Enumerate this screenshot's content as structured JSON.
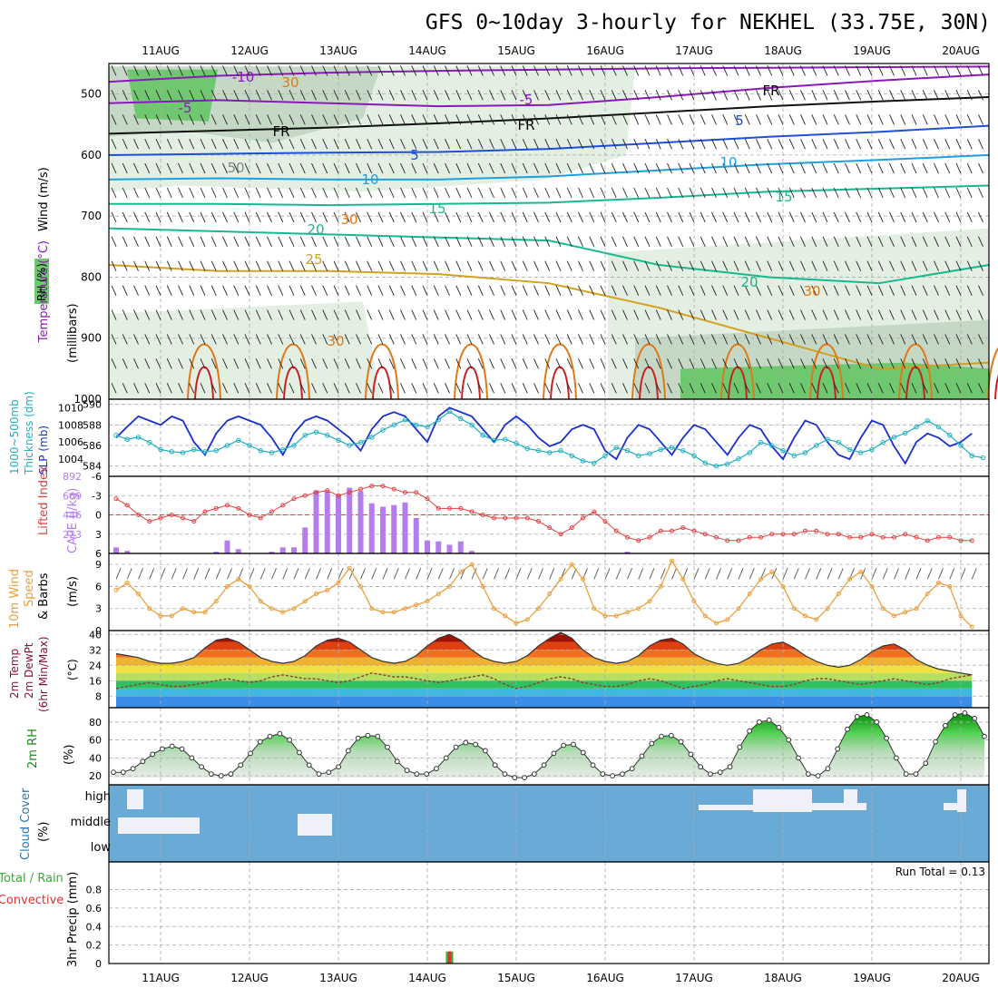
{
  "title": "GFS 0~10day 3-hourly for NEKHEL (33.75E, 30N)",
  "dates": [
    "11AUG",
    "12AUG",
    "13AUG",
    "14AUG",
    "15AUG",
    "16AUG",
    "17AUG",
    "18AUG",
    "19AUG",
    "20AUG"
  ],
  "colors": {
    "frame": "#000000",
    "grid": "#aaaaaa",
    "rh_light": "#e2efe2",
    "rh_mid": "#c5d8c5",
    "rh_dark": "#a8bca8",
    "rh_green": "#6fc86f",
    "temp_purple": "#8a1ab8",
    "temp_black": "#111111",
    "temp_blue": "#1e4fd8",
    "temp_cyan": "#1ea0e0",
    "temp_teal": "#18b890",
    "temp_gold": "#d4a020",
    "temp_orange": "#e07818",
    "temp_red": "#c82020",
    "slp": "#1a2fd0",
    "thickness": "#20b0c0",
    "lifted": "#e04040",
    "cape": "#b57cf0",
    "wind": "#e8a040",
    "cloud_bg": "#6aaad6",
    "cloud_fill": "#f0f0f8",
    "precip_total": "#30b030",
    "precip_conv": "#e03030"
  },
  "panels": {
    "upper": {
      "ylabel_lines": [
        "Wind (m/s)",
        "Temperature (°C)",
        "(millibars)",
        "RH (%)"
      ],
      "yticks": [
        "500",
        "600",
        "700",
        "800",
        "900",
        "1000"
      ],
      "contour_labels": [
        "-10",
        "-5",
        "-5",
        "FR",
        "FR",
        "FR",
        "5",
        "5",
        "10",
        "10",
        "15",
        "15",
        "20",
        "20",
        "25",
        "30",
        "30",
        "50",
        "30",
        "30"
      ]
    },
    "slp_thick": {
      "ylabel_lines": [
        "1000~500mb",
        "Thickness (dm)",
        "SLP (mb)"
      ],
      "left_ticks": [
        "590",
        "588",
        "586",
        "584"
      ],
      "right_ticks": [
        "1010",
        "1008",
        "1006",
        "1004"
      ]
    },
    "li_cape": {
      "ylabel_lines": [
        "Lifted Index",
        "CAPE (J/kg)"
      ],
      "left_ticks": [
        "-6",
        "-3",
        "0",
        "3",
        "6"
      ],
      "right_ticks": [
        "892",
        "669",
        "446",
        "223"
      ]
    },
    "wind10": {
      "ylabel_lines": [
        "10m Wind",
        "Speed",
        "& Barbs",
        "(m/s)"
      ],
      "yticks": [
        "9",
        "6",
        "3",
        "0"
      ]
    },
    "temp2m": {
      "ylabel_lines": [
        "2m Temp",
        "2m DewPt",
        "(6hr Min/Max)",
        "(°C)"
      ],
      "yticks": [
        "40",
        "32",
        "24",
        "16",
        "8"
      ]
    },
    "rh2m": {
      "ylabel_lines": [
        "2m RH",
        "(%)"
      ],
      "yticks": [
        "80",
        "60",
        "40",
        "20"
      ]
    },
    "cloud": {
      "ylabel_lines": [
        "Cloud Cover",
        "(%)"
      ],
      "levels": [
        "high",
        "middle",
        "low"
      ]
    },
    "precip": {
      "ylabel_lines": [
        "Total / Rain",
        "Convective",
        "3hr Precip (mm)"
      ],
      "yticks": [
        "0.8",
        "0.6",
        "0.4",
        "0.2",
        "0"
      ],
      "yticks_all": [
        "1",
        "0.8",
        "0.6",
        "0.4",
        "0.2",
        "0"
      ],
      "run_total": "Run Total = 0.13"
    }
  },
  "chart_data": [
    {
      "type": "line",
      "name": "slp_thickness",
      "x_unit": "3-hourly steps",
      "series": [
        {
          "name": "SLP (mb)",
          "values": [
            1006.5,
            1007.8,
            1009.0,
            1008.5,
            1008.0,
            1009.0,
            1008.5,
            1006.0,
            1004.5,
            1007.0,
            1008.5,
            1009.0,
            1008.5,
            1008.0,
            1006.5,
            1004.5,
            1007.0,
            1008.5,
            1009.0,
            1008.5,
            1007.5,
            1006.5,
            1005.0,
            1007.5,
            1009.0,
            1009.5,
            1009.0,
            1007.5,
            1006.0,
            1009.0,
            1010.0,
            1009.5,
            1009.0,
            1007.5,
            1006.0,
            1008.0,
            1009.0,
            1008.0,
            1006.5,
            1005.5,
            1006.0,
            1007.5,
            1008.0,
            1007.5,
            1005.0,
            1004.0,
            1006.5,
            1008.0,
            1007.5,
            1006.0,
            1004.5,
            1006.5,
            1008.0,
            1007.5,
            1006.0,
            1004.5,
            1006.5,
            1008.0,
            1007.5,
            1005.5,
            1004.0,
            1006.5,
            1008.5,
            1008.0,
            1006.0,
            1004.5,
            1004.0,
            1006.5,
            1008.5,
            1008.0,
            1005.5,
            1003.5,
            1006.0,
            1007.0,
            1006.5,
            1005.5,
            1006.0,
            1007.0
          ]
        },
        {
          "name": "1000~500mb Thickness (dm)",
          "values": [
            587.0,
            586.6,
            586.8,
            586.3,
            585.6,
            585.4,
            585.3,
            585.6,
            585.4,
            585.5,
            586.0,
            586.5,
            586.0,
            585.5,
            585.3,
            585.6,
            586.0,
            587.0,
            587.3,
            587.0,
            586.5,
            586.0,
            586.3,
            586.8,
            587.5,
            588.0,
            588.5,
            588.0,
            587.8,
            588.5,
            589.3,
            588.6,
            588.0,
            587.0,
            586.5,
            586.6,
            586.2,
            585.7,
            585.5,
            585.3,
            585.5,
            585.0,
            584.5,
            584.3,
            585.0,
            585.8,
            585.5,
            585.0,
            585.2,
            585.6,
            585.8,
            585.5,
            585.0,
            584.3,
            584.0,
            584.2,
            584.7,
            585.3,
            586.3,
            586.0,
            585.5,
            585.0,
            585.3,
            586.0,
            586.6,
            586.3,
            585.6,
            585.3,
            585.6,
            586.3,
            586.8,
            587.2,
            587.8,
            588.4,
            587.8,
            587.0,
            586.0,
            585.0,
            584.8,
            585.3
          ]
        }
      ]
    },
    {
      "type": "bar",
      "name": "cape_lifted_index",
      "series": [
        {
          "name": "CAPE (J/kg)",
          "values": [
            70,
            30,
            0,
            0,
            0,
            0,
            0,
            0,
            0,
            20,
            150,
            50,
            0,
            0,
            20,
            70,
            70,
            300,
            730,
            720,
            680,
            760,
            720,
            580,
            540,
            560,
            590,
            410,
            150,
            140,
            100,
            140,
            30,
            0,
            0,
            0,
            0,
            0,
            0,
            0,
            0,
            0,
            0,
            0,
            0,
            0,
            20,
            0,
            0,
            0,
            0,
            0,
            0,
            0,
            0,
            0,
            0,
            0,
            0,
            0,
            0,
            0,
            0,
            0,
            0,
            0,
            0,
            0,
            0,
            0,
            0,
            0,
            0,
            0,
            0,
            0,
            0,
            0
          ]
        },
        {
          "name": "Lifted Index",
          "values": [
            -2.5,
            -1.5,
            0,
            1,
            0.5,
            0,
            0.5,
            1,
            -0.5,
            -1,
            -1.5,
            -1,
            0,
            0.5,
            -0.5,
            -1.5,
            -2.5,
            -3,
            -3.5,
            -3.8,
            -3,
            -3.5,
            -4,
            -4.5,
            -4.5,
            -4,
            -3.5,
            -3.5,
            -2.5,
            -1,
            -1,
            -1,
            -0.5,
            0,
            0.5,
            0.5,
            0.5,
            0.5,
            1,
            2,
            3,
            2,
            0.5,
            -0.5,
            1,
            2.5,
            3.5,
            4,
            3.5,
            2.5,
            2.5,
            2,
            2.5,
            3,
            3.5,
            4,
            4,
            3.5,
            3.5,
            3,
            3,
            3,
            2.5,
            2.5,
            3,
            3,
            3.5,
            3.5,
            3,
            3.5,
            3.5,
            3,
            3.5,
            4,
            3.5,
            3.5,
            4,
            4
          ]
        }
      ]
    },
    {
      "type": "line",
      "name": "wind10m",
      "series": [
        {
          "name": "10m Wind Speed (m/s)",
          "values": [
            5.5,
            6.5,
            5,
            3,
            2,
            2,
            3,
            2.5,
            2.5,
            4,
            6,
            7,
            6,
            4,
            3,
            2.5,
            3,
            4,
            5,
            5.5,
            6.5,
            8.5,
            6,
            3,
            2.5,
            2.5,
            3,
            3.5,
            4,
            5,
            6,
            8,
            9,
            6,
            3,
            2,
            1,
            1.5,
            3,
            5,
            7,
            9,
            7,
            3,
            2,
            2,
            2.5,
            3,
            4,
            6,
            9.5,
            7,
            4,
            2,
            1,
            1.5,
            3,
            5,
            7,
            8,
            6,
            3,
            2,
            1.5,
            3,
            5,
            7,
            8,
            6,
            3,
            2,
            2.5,
            3,
            5,
            6.5,
            6,
            2,
            0.5
          ]
        }
      ]
    },
    {
      "type": "area",
      "name": "temp2m",
      "series": [
        {
          "name": "2m Temp (°C)",
          "values": [
            30,
            29,
            28,
            26,
            25,
            25,
            26,
            28,
            33,
            37,
            38,
            36,
            32,
            28,
            26,
            25,
            26,
            29,
            34,
            37,
            38,
            36,
            32,
            28,
            26,
            25,
            26,
            29,
            34,
            38,
            40,
            37,
            32,
            28,
            26,
            25,
            26,
            29,
            34,
            38,
            41,
            38,
            32,
            28,
            26,
            25,
            26,
            29,
            34,
            37,
            38,
            35,
            30,
            27,
            25,
            24,
            25,
            28,
            32,
            35,
            36,
            33,
            29,
            26,
            24,
            23,
            24,
            27,
            31,
            34,
            35,
            32,
            27,
            24,
            22,
            21,
            20,
            19
          ]
        },
        {
          "name": "2m DewPt (°C)",
          "values": [
            12,
            13,
            14,
            15,
            14,
            13,
            13,
            14,
            15,
            16,
            17,
            16,
            15,
            16,
            18,
            19,
            18,
            17,
            17,
            16,
            15,
            16,
            18,
            20,
            19,
            18,
            18,
            17,
            16,
            15,
            16,
            17,
            18,
            19,
            17,
            14,
            12,
            13,
            15,
            17,
            18,
            17,
            15,
            14,
            13,
            13,
            14,
            16,
            17,
            16,
            14,
            12,
            13,
            14,
            16,
            17,
            16,
            15,
            14,
            13,
            13,
            14,
            16,
            17,
            17,
            16,
            15,
            14,
            15,
            16,
            17,
            16,
            15,
            14,
            15,
            17,
            18,
            19
          ]
        }
      ]
    },
    {
      "type": "area",
      "name": "rh2m",
      "series": [
        {
          "name": "2m RH (%)",
          "values": [
            24,
            24,
            28,
            36,
            44,
            50,
            53,
            50,
            40,
            30,
            22,
            20,
            22,
            32,
            45,
            58,
            64,
            67,
            60,
            46,
            32,
            22,
            24,
            30,
            48,
            62,
            65,
            64,
            52,
            36,
            26,
            22,
            22,
            28,
            40,
            52,
            57,
            55,
            48,
            32,
            22,
            18,
            18,
            22,
            32,
            45,
            54,
            55,
            46,
            32,
            22,
            20,
            22,
            28,
            42,
            56,
            64,
            65,
            58,
            44,
            30,
            22,
            24,
            30,
            52,
            70,
            80,
            82,
            74,
            60,
            40,
            22,
            20,
            28,
            50,
            72,
            86,
            88,
            80,
            62,
            40,
            22,
            22,
            34,
            58,
            76,
            88,
            90,
            84,
            64
          ]
        }
      ]
    },
    {
      "type": "bar",
      "name": "precip3hr",
      "run_total": "Run Total = 0.13",
      "series": [
        {
          "name": "Total (mm)",
          "values": [
            0,
            0,
            0,
            0,
            0,
            0,
            0,
            0,
            0,
            0,
            0,
            0,
            0,
            0,
            0,
            0,
            0,
            0,
            0,
            0,
            0,
            0,
            0,
            0,
            0,
            0,
            0,
            0,
            0,
            0,
            0.13,
            0,
            0,
            0,
            0,
            0,
            0,
            0,
            0,
            0,
            0,
            0,
            0,
            0,
            0,
            0,
            0,
            0,
            0,
            0,
            0,
            0,
            0,
            0,
            0,
            0,
            0,
            0,
            0,
            0,
            0,
            0,
            0,
            0,
            0,
            0,
            0,
            0,
            0,
            0,
            0,
            0,
            0,
            0,
            0,
            0,
            0,
            0
          ]
        },
        {
          "name": "Convective (mm)",
          "values": [
            0,
            0,
            0,
            0,
            0,
            0,
            0,
            0,
            0,
            0,
            0,
            0,
            0,
            0,
            0,
            0,
            0,
            0,
            0,
            0,
            0,
            0,
            0,
            0,
            0,
            0,
            0,
            0,
            0,
            0,
            0.13,
            0,
            0,
            0,
            0,
            0,
            0,
            0,
            0,
            0,
            0,
            0,
            0,
            0,
            0,
            0,
            0,
            0,
            0,
            0,
            0,
            0,
            0,
            0,
            0,
            0,
            0,
            0,
            0,
            0,
            0,
            0,
            0,
            0,
            0,
            0,
            0,
            0,
            0,
            0,
            0,
            0,
            0,
            0,
            0,
            0,
            0,
            0
          ]
        }
      ]
    }
  ]
}
